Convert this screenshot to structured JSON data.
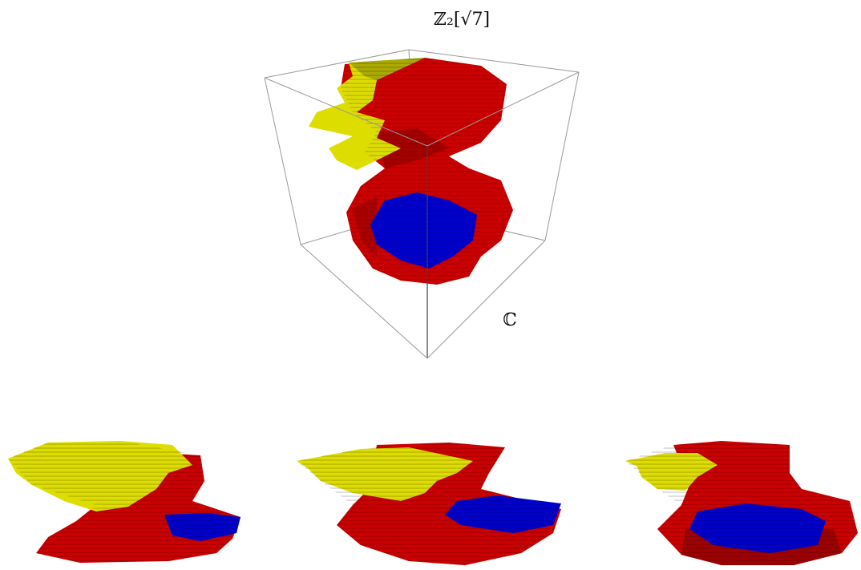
{
  "labels": {
    "top": "ℤ₂[√7]",
    "right": "ℂ"
  }
}
